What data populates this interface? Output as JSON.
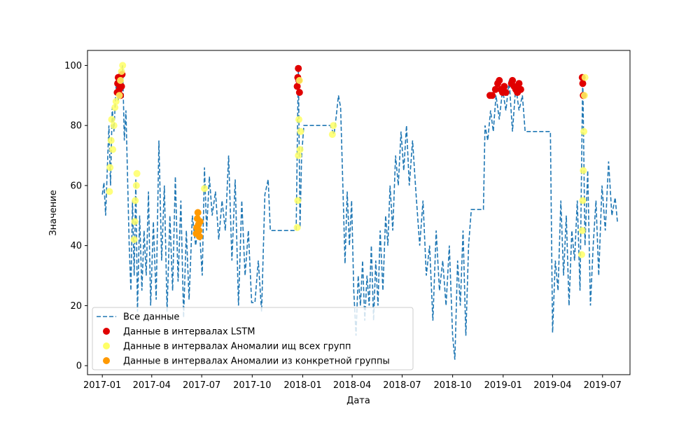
{
  "chart_data": {
    "type": "line",
    "title": "",
    "xlabel": "Дата",
    "ylabel": "Значение",
    "x_range": [
      "2016-12-05",
      "2019-08-20"
    ],
    "ylim": [
      -3,
      105
    ],
    "grid": false,
    "legend_placement": "lower-left",
    "x_ticks": [
      "2017-01",
      "2017-04",
      "2017-07",
      "2017-10",
      "2018-01",
      "2018-04",
      "2018-07",
      "2018-10",
      "2019-01",
      "2019-04",
      "2019-07"
    ],
    "y_ticks": [
      0,
      20,
      40,
      60,
      80,
      100
    ],
    "series": [
      {
        "name": "Все данные",
        "style": "dashed-line",
        "color": "#1f77b4",
        "points": [
          [
            "2017-01-01",
            57
          ],
          [
            "2017-01-04",
            61
          ],
          [
            "2017-01-07",
            50
          ],
          [
            "2017-01-10",
            65
          ],
          [
            "2017-01-13",
            80
          ],
          [
            "2017-01-16",
            60
          ],
          [
            "2017-01-19",
            86
          ],
          [
            "2017-01-22",
            78
          ],
          [
            "2017-01-26",
            93
          ],
          [
            "2017-01-30",
            88
          ],
          [
            "2017-02-03",
            96
          ],
          [
            "2017-02-07",
            100
          ],
          [
            "2017-02-10",
            75
          ],
          [
            "2017-02-13",
            85
          ],
          [
            "2017-02-16",
            62
          ],
          [
            "2017-02-19",
            40
          ],
          [
            "2017-02-22",
            25
          ],
          [
            "2017-02-25",
            55
          ],
          [
            "2017-02-28",
            30
          ],
          [
            "2017-03-03",
            62
          ],
          [
            "2017-03-06",
            18
          ],
          [
            "2017-03-10",
            50
          ],
          [
            "2017-03-14",
            25
          ],
          [
            "2017-03-18",
            45
          ],
          [
            "2017-03-22",
            30
          ],
          [
            "2017-03-26",
            58
          ],
          [
            "2017-03-30",
            20
          ],
          [
            "2017-04-04",
            48
          ],
          [
            "2017-04-09",
            22
          ],
          [
            "2017-04-14",
            75
          ],
          [
            "2017-04-19",
            35
          ],
          [
            "2017-04-24",
            60
          ],
          [
            "2017-04-29",
            18
          ],
          [
            "2017-05-04",
            50
          ],
          [
            "2017-05-09",
            25
          ],
          [
            "2017-05-14",
            63
          ],
          [
            "2017-05-19",
            28
          ],
          [
            "2017-05-24",
            55
          ],
          [
            "2017-05-29",
            16
          ],
          [
            "2017-06-03",
            45
          ],
          [
            "2017-06-08",
            22
          ],
          [
            "2017-06-14",
            50
          ],
          [
            "2017-06-20",
            40
          ],
          [
            "2017-06-26",
            48
          ],
          [
            "2017-07-02",
            30
          ],
          [
            "2017-07-06",
            66
          ],
          [
            "2017-07-10",
            45
          ],
          [
            "2017-07-15",
            63
          ],
          [
            "2017-07-20",
            50
          ],
          [
            "2017-07-26",
            58
          ],
          [
            "2017-08-01",
            42
          ],
          [
            "2017-08-07",
            55
          ],
          [
            "2017-08-13",
            45
          ],
          [
            "2017-08-19",
            70
          ],
          [
            "2017-08-25",
            35
          ],
          [
            "2017-08-31",
            62
          ],
          [
            "2017-09-06",
            20
          ],
          [
            "2017-09-12",
            55
          ],
          [
            "2017-09-18",
            30
          ],
          [
            "2017-09-24",
            45
          ],
          [
            "2017-09-30",
            21
          ],
          [
            "2017-10-06",
            21
          ],
          [
            "2017-10-12",
            35
          ],
          [
            "2017-10-18",
            18
          ],
          [
            "2017-10-24",
            57
          ],
          [
            "2017-10-30",
            62
          ],
          [
            "2017-11-03",
            45
          ],
          [
            "2017-11-20",
            45
          ],
          [
            "2017-12-10",
            45
          ],
          [
            "2017-12-20",
            45
          ],
          [
            "2017-12-24",
            100
          ],
          [
            "2017-12-27",
            46
          ],
          [
            "2017-12-30",
            70
          ],
          [
            "2018-01-03",
            80
          ],
          [
            "2018-01-18",
            80
          ],
          [
            "2018-02-05",
            80
          ],
          [
            "2018-02-20",
            80
          ],
          [
            "2018-02-27",
            77
          ],
          [
            "2018-03-03",
            83
          ],
          [
            "2018-03-07",
            90
          ],
          [
            "2018-03-11",
            86
          ],
          [
            "2018-03-15",
            60
          ],
          [
            "2018-03-19",
            34
          ],
          [
            "2018-03-23",
            58
          ],
          [
            "2018-03-27",
            40
          ],
          [
            "2018-03-31",
            55
          ],
          [
            "2018-04-04",
            25
          ],
          [
            "2018-04-08",
            10
          ],
          [
            "2018-04-12",
            30
          ],
          [
            "2018-04-16",
            20
          ],
          [
            "2018-04-20",
            35
          ],
          [
            "2018-04-24",
            15
          ],
          [
            "2018-04-28",
            30
          ],
          [
            "2018-05-02",
            20
          ],
          [
            "2018-05-06",
            40
          ],
          [
            "2018-05-10",
            15
          ],
          [
            "2018-05-14",
            35
          ],
          [
            "2018-05-18",
            20
          ],
          [
            "2018-05-22",
            45
          ],
          [
            "2018-05-27",
            25
          ],
          [
            "2018-06-01",
            50
          ],
          [
            "2018-06-05",
            40
          ],
          [
            "2018-06-09",
            60
          ],
          [
            "2018-06-14",
            45
          ],
          [
            "2018-06-19",
            70
          ],
          [
            "2018-06-24",
            60
          ],
          [
            "2018-06-29",
            78
          ],
          [
            "2018-07-04",
            65
          ],
          [
            "2018-07-09",
            80
          ],
          [
            "2018-07-14",
            60
          ],
          [
            "2018-07-20",
            75
          ],
          [
            "2018-07-26",
            58
          ],
          [
            "2018-08-02",
            40
          ],
          [
            "2018-08-08",
            55
          ],
          [
            "2018-08-14",
            30
          ],
          [
            "2018-08-20",
            40
          ],
          [
            "2018-08-26",
            15
          ],
          [
            "2018-09-01",
            45
          ],
          [
            "2018-09-07",
            25
          ],
          [
            "2018-09-13",
            35
          ],
          [
            "2018-09-19",
            20
          ],
          [
            "2018-09-25",
            40
          ],
          [
            "2018-10-01",
            10
          ],
          [
            "2018-10-05",
            2
          ],
          [
            "2018-10-10",
            35
          ],
          [
            "2018-10-15",
            20
          ],
          [
            "2018-10-20",
            45
          ],
          [
            "2018-10-25",
            10
          ],
          [
            "2018-10-30",
            40
          ],
          [
            "2018-11-04",
            52
          ],
          [
            "2018-11-20",
            52
          ],
          [
            "2018-11-26",
            52
          ],
          [
            "2018-11-29",
            80
          ],
          [
            "2018-12-04",
            75
          ],
          [
            "2018-12-09",
            85
          ],
          [
            "2018-12-14",
            78
          ],
          [
            "2018-12-19",
            90
          ],
          [
            "2018-12-25",
            82
          ],
          [
            "2018-12-31",
            92
          ],
          [
            "2019-01-06",
            85
          ],
          [
            "2019-01-12",
            95
          ],
          [
            "2019-01-18",
            78
          ],
          [
            "2019-01-24",
            93
          ],
          [
            "2019-01-30",
            85
          ],
          [
            "2019-02-05",
            90
          ],
          [
            "2019-02-10",
            78
          ],
          [
            "2019-02-15",
            78
          ],
          [
            "2019-03-05",
            78
          ],
          [
            "2019-03-28",
            78
          ],
          [
            "2019-04-01",
            11
          ],
          [
            "2019-04-06",
            35
          ],
          [
            "2019-04-11",
            25
          ],
          [
            "2019-04-16",
            55
          ],
          [
            "2019-04-21",
            30
          ],
          [
            "2019-04-26",
            50
          ],
          [
            "2019-05-01",
            20
          ],
          [
            "2019-05-06",
            45
          ],
          [
            "2019-05-11",
            35
          ],
          [
            "2019-05-16",
            55
          ],
          [
            "2019-05-21",
            25
          ],
          [
            "2019-05-26",
            97
          ],
          [
            "2019-05-30",
            40
          ],
          [
            "2019-06-04",
            65
          ],
          [
            "2019-06-09",
            20
          ],
          [
            "2019-06-14",
            40
          ],
          [
            "2019-06-19",
            55
          ],
          [
            "2019-06-24",
            30
          ],
          [
            "2019-06-30",
            60
          ],
          [
            "2019-07-06",
            45
          ],
          [
            "2019-07-12",
            68
          ],
          [
            "2019-07-18",
            50
          ],
          [
            "2019-07-24",
            56
          ],
          [
            "2019-07-28",
            48
          ]
        ]
      },
      {
        "name": "Данные в интервалах LSTM",
        "style": "scatter",
        "color": "#e00000",
        "points": [
          [
            "2017-01-28",
            91
          ],
          [
            "2017-01-29",
            94
          ],
          [
            "2017-01-30",
            96
          ],
          [
            "2017-02-01",
            92
          ],
          [
            "2017-02-02",
            95
          ],
          [
            "2017-02-03",
            90
          ],
          [
            "2017-02-05",
            93
          ],
          [
            "2017-02-06",
            97
          ],
          [
            "2017-12-22",
            93
          ],
          [
            "2017-12-23",
            96
          ],
          [
            "2017-12-24",
            99
          ],
          [
            "2017-12-25",
            95
          ],
          [
            "2017-12-26",
            91
          ],
          [
            "2018-12-08",
            90
          ],
          [
            "2018-12-12",
            90
          ],
          [
            "2018-12-18",
            92
          ],
          [
            "2018-12-22",
            94
          ],
          [
            "2018-12-25",
            95
          ],
          [
            "2018-12-28",
            92
          ],
          [
            "2018-12-31",
            91
          ],
          [
            "2019-01-03",
            93
          ],
          [
            "2019-01-06",
            91
          ],
          [
            "2019-01-16",
            94
          ],
          [
            "2019-01-18",
            95
          ],
          [
            "2019-01-21",
            93
          ],
          [
            "2019-01-24",
            92
          ],
          [
            "2019-01-27",
            91
          ],
          [
            "2019-01-30",
            94
          ],
          [
            "2019-02-02",
            92
          ],
          [
            "2019-05-25",
            96
          ],
          [
            "2019-05-26",
            94
          ],
          [
            "2019-05-27",
            90
          ]
        ]
      },
      {
        "name": "Данные в интервалах Аномалии ищ всех групп",
        "style": "scatter",
        "color": "#ffff66",
        "points": [
          [
            "2017-01-14",
            58
          ],
          [
            "2017-01-15",
            66
          ],
          [
            "2017-01-17",
            75
          ],
          [
            "2017-01-18",
            82
          ],
          [
            "2017-01-20",
            72
          ],
          [
            "2017-01-22",
            80
          ],
          [
            "2017-01-24",
            86
          ],
          [
            "2017-01-26",
            88
          ],
          [
            "2017-02-01",
            90
          ],
          [
            "2017-02-03",
            95
          ],
          [
            "2017-02-05",
            98
          ],
          [
            "2017-02-07",
            100
          ],
          [
            "2017-02-28",
            42
          ],
          [
            "2017-03-01",
            48
          ],
          [
            "2017-03-02",
            55
          ],
          [
            "2017-03-04",
            60
          ],
          [
            "2017-03-05",
            64
          ],
          [
            "2017-07-06",
            59
          ],
          [
            "2017-12-22",
            46
          ],
          [
            "2017-12-23",
            55
          ],
          [
            "2017-12-24",
            70
          ],
          [
            "2017-12-25",
            82
          ],
          [
            "2017-12-26",
            95
          ],
          [
            "2017-12-27",
            72
          ],
          [
            "2017-12-28",
            78
          ],
          [
            "2018-02-24",
            77
          ],
          [
            "2018-02-26",
            80
          ],
          [
            "2019-05-24",
            37
          ],
          [
            "2019-05-25",
            45
          ],
          [
            "2019-05-26",
            55
          ],
          [
            "2019-05-27",
            65
          ],
          [
            "2019-05-28",
            78
          ],
          [
            "2019-05-29",
            90
          ],
          [
            "2019-05-30",
            96
          ]
        ]
      },
      {
        "name": "Данные в интервалах Аномалии из конкретной группы",
        "style": "scatter",
        "color": "#ff9900",
        "points": [
          [
            "2017-06-21",
            44
          ],
          [
            "2017-06-22",
            46
          ],
          [
            "2017-06-23",
            49
          ],
          [
            "2017-06-24",
            51
          ],
          [
            "2017-06-25",
            47
          ],
          [
            "2017-06-26",
            45
          ],
          [
            "2017-06-27",
            43
          ],
          [
            "2017-06-28",
            48
          ]
        ]
      }
    ]
  }
}
